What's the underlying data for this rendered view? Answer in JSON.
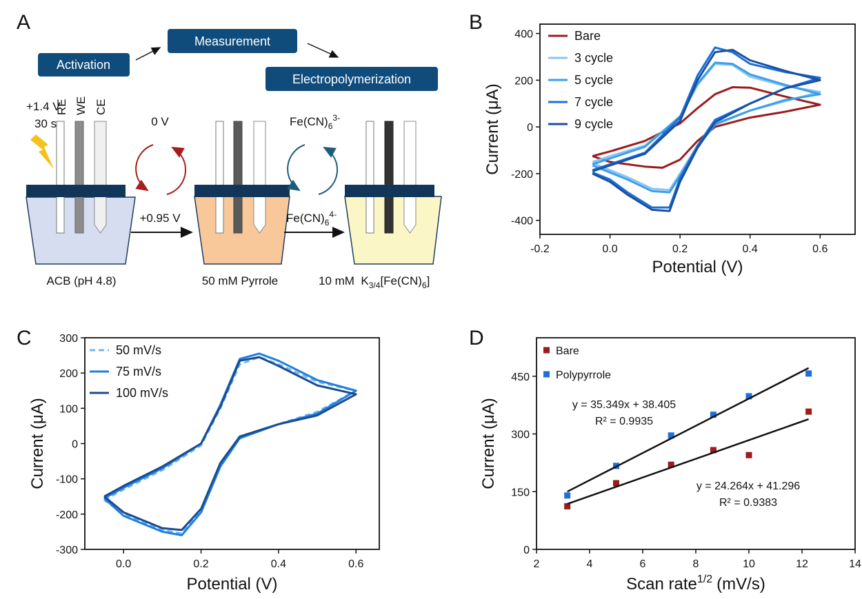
{
  "panels": [
    "A",
    "B",
    "C",
    "D"
  ],
  "diagram": {
    "steps": [
      "Activation",
      "Measurement",
      "Electropolymerization"
    ],
    "activation_voltage": "+1.4 V",
    "activation_time": "30 s",
    "electrodes": [
      "RE",
      "WE",
      "CE"
    ],
    "measure_voltage": "0 V",
    "polymer_voltage": "+0.95 V",
    "oxidized": {
      "base": "Fe(CN)",
      "sub": "6",
      "sup": "3-"
    },
    "reduced": {
      "base": "Fe(CN)",
      "sub": "6",
      "sup": "4-"
    },
    "solutions": [
      "ACB (pH 4.8)",
      "50 mM Pyrrole"
    ],
    "probe": {
      "pre": "10 mM  K",
      "sub": "3/4",
      "mid": "[Fe(CN)",
      "sub2": "6",
      "post": "]"
    }
  },
  "chart_data": [
    {
      "type": "line",
      "xlabel": "Potential (V)",
      "ylabel": "Current (μA)",
      "xlim": [
        -0.2,
        0.7
      ],
      "xticks": [
        -0.2,
        {
          "value": 0,
          "label": "0.0"
        },
        0.2,
        0.4,
        0.6
      ],
      "ylim": [
        -460,
        440
      ],
      "yticks": [
        -400,
        -200,
        0,
        200,
        400
      ],
      "series": [
        {
          "name": "Bare",
          "color": "#9b1c1c",
          "x": [
            -0.05,
            0,
            0.1,
            0.2,
            0.25,
            0.3,
            0.35,
            0.4,
            0.5,
            0.6,
            0.5,
            0.4,
            0.3,
            0.25,
            0.2,
            0.15,
            0.1,
            0,
            -0.05
          ],
          "values": [
            -125,
            -105,
            -60,
            15,
            80,
            140,
            170,
            168,
            130,
            95,
            65,
            40,
            0,
            -60,
            -140,
            -175,
            -170,
            -150,
            -125
          ]
        },
        {
          "name": "3 cycle",
          "color": "#8cc4f0",
          "x": [
            -0.05,
            0,
            0.1,
            0.2,
            0.25,
            0.3,
            0.35,
            0.4,
            0.5,
            0.6,
            0.5,
            0.4,
            0.3,
            0.25,
            0.2,
            0.17,
            0.12,
            0.05,
            0,
            -0.05
          ],
          "values": [
            -150,
            -125,
            -80,
            40,
            180,
            270,
            265,
            215,
            175,
            150,
            110,
            70,
            15,
            -80,
            -200,
            -270,
            -265,
            -215,
            -185,
            -155
          ]
        },
        {
          "name": "5 cycle",
          "color": "#3a9fe8",
          "x": [
            -0.05,
            0,
            0.1,
            0.2,
            0.25,
            0.3,
            0.35,
            0.4,
            0.5,
            0.6,
            0.5,
            0.4,
            0.3,
            0.25,
            0.2,
            0.17,
            0.12,
            0.05,
            0,
            -0.05
          ],
          "values": [
            -160,
            -135,
            -85,
            45,
            185,
            275,
            270,
            225,
            180,
            140,
            115,
            70,
            10,
            -85,
            -210,
            -280,
            -275,
            -225,
            -195,
            -165
          ]
        },
        {
          "name": "7 cycle",
          "color": "#1a6fd8",
          "x": [
            -0.05,
            0,
            0.1,
            0.2,
            0.25,
            0.3,
            0.35,
            0.4,
            0.5,
            0.6,
            0.5,
            0.4,
            0.3,
            0.25,
            0.2,
            0.17,
            0.12,
            0.05,
            0,
            -0.05
          ],
          "values": [
            -185,
            -160,
            -110,
            40,
            220,
            340,
            320,
            270,
            235,
            210,
            165,
            100,
            30,
            -80,
            -220,
            -345,
            -345,
            -280,
            -225,
            -195
          ]
        },
        {
          "name": "9 cycle",
          "color": "#1b4fa0",
          "x": [
            -0.05,
            0,
            0.1,
            0.2,
            0.25,
            0.3,
            0.35,
            0.4,
            0.5,
            0.6,
            0.5,
            0.4,
            0.3,
            0.25,
            0.2,
            0.17,
            0.12,
            0.05,
            0,
            -0.05
          ],
          "values": [
            -190,
            -165,
            -115,
            25,
            200,
            320,
            330,
            285,
            240,
            200,
            165,
            100,
            20,
            -90,
            -235,
            -360,
            -355,
            -290,
            -235,
            -200
          ]
        }
      ]
    },
    {
      "type": "line",
      "xlabel": "Potential (V)",
      "ylabel": "Current (μA)",
      "xlim": [
        -0.1,
        0.66
      ],
      "xticks": [
        {
          "value": 0,
          "label": "0.0"
        },
        0.2,
        0.4,
        0.6
      ],
      "ylim": [
        -300,
        300
      ],
      "yticks": [
        -300,
        -200,
        -100,
        0,
        100,
        200,
        300
      ],
      "series": [
        {
          "name": "50 mV/s",
          "color": "#6fb6f2",
          "dash": true,
          "x": [
            -0.05,
            0,
            0.1,
            0.2,
            0.25,
            0.3,
            0.35,
            0.4,
            0.5,
            0.6,
            0.5,
            0.4,
            0.3,
            0.25,
            0.2,
            0.15,
            0.1,
            0,
            -0.05
          ],
          "values": [
            -160,
            -130,
            -75,
            -5,
            100,
            225,
            245,
            225,
            175,
            150,
            90,
            55,
            20,
            -60,
            -190,
            -255,
            -245,
            -200,
            -160
          ]
        },
        {
          "name": "75 mV/s",
          "color": "#1f7ee0",
          "x": [
            -0.05,
            0,
            0.1,
            0.2,
            0.25,
            0.3,
            0.35,
            0.4,
            0.5,
            0.6,
            0.5,
            0.4,
            0.3,
            0.25,
            0.2,
            0.15,
            0.1,
            0,
            -0.05
          ],
          "values": [
            -155,
            -125,
            -70,
            0,
            110,
            240,
            255,
            235,
            180,
            150,
            85,
            55,
            15,
            -65,
            -195,
            -260,
            -250,
            -205,
            -155
          ]
        },
        {
          "name": "100 mV/s",
          "color": "#1b4a8f",
          "x": [
            -0.05,
            0,
            0.1,
            0.2,
            0.25,
            0.3,
            0.35,
            0.4,
            0.5,
            0.6,
            0.5,
            0.4,
            0.3,
            0.25,
            0.2,
            0.15,
            0.1,
            0,
            -0.05
          ],
          "values": [
            -150,
            -120,
            -65,
            0,
            105,
            235,
            245,
            220,
            165,
            140,
            80,
            55,
            20,
            -55,
            -185,
            -245,
            -240,
            -195,
            -150
          ]
        }
      ]
    },
    {
      "type": "scatter",
      "xlabel": {
        "text": "Scan rate",
        "sup": "1/2",
        "unit": "(mV/s)"
      },
      "ylabel": "Current (μA)",
      "xlim": [
        2,
        14
      ],
      "xticks": [
        2,
        4,
        6,
        8,
        10,
        12,
        14
      ],
      "ylim": [
        0,
        550
      ],
      "yticks": [
        0,
        150,
        300,
        450
      ],
      "annotations": [
        "y = 35.349x + 38.405",
        "R² = 0.9935",
        "y = 24.264x + 41.296",
        "R² = 0.9383"
      ],
      "series": [
        {
          "name": "Bare",
          "color": "#9b1c1c",
          "x": [
            3.16,
            5,
            7.07,
            8.66,
            10,
            12.25
          ],
          "values": [
            112,
            172,
            220,
            258,
            245,
            358
          ]
        },
        {
          "name": "Polypyrrole",
          "color": "#1f6fd8",
          "x": [
            3.16,
            5,
            7.07,
            8.66,
            10,
            12.25
          ],
          "values": [
            140,
            217,
            296,
            350,
            398,
            457
          ]
        },
        {
          "style": "line",
          "color": "#111111",
          "x": [
            3.16,
            12.25
          ],
          "values": [
            150.1,
            471.4
          ]
        },
        {
          "style": "line",
          "color": "#111111",
          "x": [
            3.16,
            12.25
          ],
          "values": [
            118.0,
            338.5
          ]
        }
      ]
    }
  ]
}
